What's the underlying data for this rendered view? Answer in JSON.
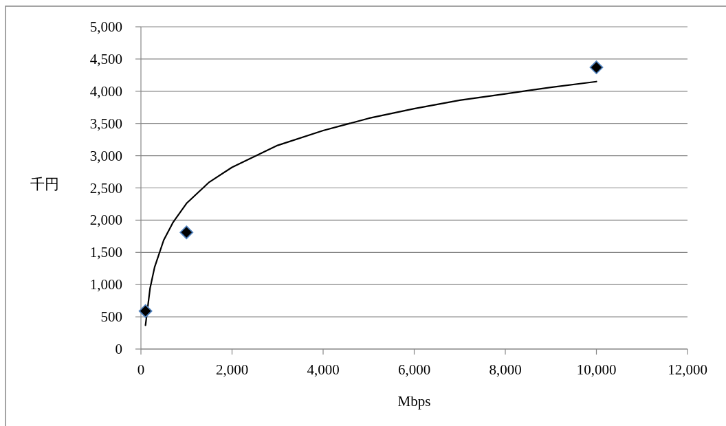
{
  "chart_data": {
    "type": "scatter",
    "xlabel": "Mbps",
    "ylabel": "千円",
    "grid": "y",
    "xlim": [
      0,
      12000
    ],
    "xticks": [
      0,
      {
        "value": 2000,
        "label": "2,000"
      },
      {
        "value": 4000,
        "label": "4,000"
      },
      {
        "value": 6000,
        "label": "6,000"
      },
      {
        "value": 8000,
        "label": "8,000"
      },
      {
        "value": 10000,
        "label": "10,000"
      },
      {
        "value": 12000,
        "label": "12,000"
      }
    ],
    "ylim": [
      0,
      5000
    ],
    "yticks": [
      0,
      500,
      {
        "value": 1000,
        "label": "1,000"
      },
      {
        "value": 1500,
        "label": "1,500"
      },
      {
        "value": 2000,
        "label": "2,000"
      },
      {
        "value": 2500,
        "label": "2,500"
      },
      {
        "value": 3000,
        "label": "3,000"
      },
      {
        "value": 3500,
        "label": "3,500"
      },
      {
        "value": 4000,
        "label": "4,000"
      },
      {
        "value": 4500,
        "label": "4,500"
      },
      {
        "value": 5000,
        "label": "5,000"
      }
    ],
    "series": [
      {
        "type": "scatter",
        "marker": "diamond",
        "color": "#000000",
        "x": [
          100,
          1000,
          10000
        ],
        "values": [
          590,
          1810,
          4370
        ]
      },
      {
        "type": "line",
        "marker": "none",
        "color": "#000000",
        "x": [
          100,
          200,
          300,
          500,
          700,
          1000,
          1500,
          2000,
          3000,
          4000,
          5000,
          6000,
          7000,
          8000,
          9000,
          10000
        ],
        "values": [
          370,
          940,
          1270,
          1690,
          1960,
          2260,
          2590,
          2820,
          3160,
          3390,
          3580,
          3730,
          3860,
          3960,
          4060,
          4150
        ]
      }
    ]
  }
}
